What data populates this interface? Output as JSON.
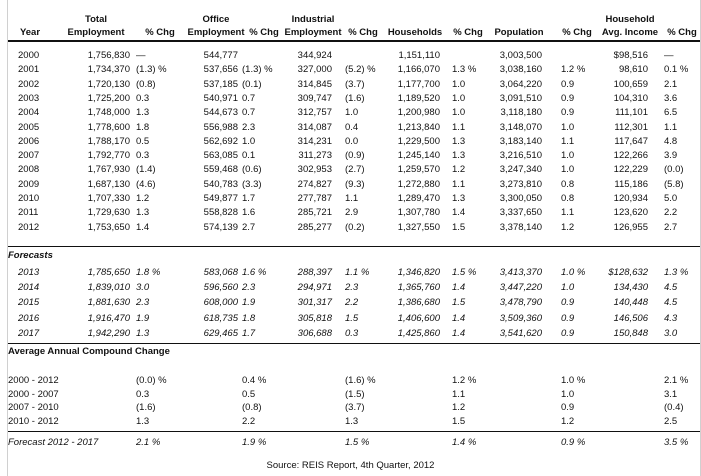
{
  "header": {
    "row1": [
      "",
      "Total",
      "",
      "Office",
      "",
      "Industrial",
      "",
      "",
      "",
      "",
      "",
      "Household",
      ""
    ],
    "row2": [
      "Year",
      "Employment",
      "% Chg",
      "Employment",
      "% Chg",
      "Employment",
      "% Chg",
      "Households",
      "% Chg",
      "Population",
      "% Chg",
      "Avg. Income",
      "% Chg"
    ]
  },
  "historical": [
    [
      "2000",
      "1,756,830",
      "—",
      "544,777",
      "",
      "344,924",
      "",
      "1,151,110",
      "",
      "3,003,500",
      "",
      "$98,516",
      "—"
    ],
    [
      "2001",
      "1,734,370",
      "(1.3) %",
      "537,656",
      "(1.3) %",
      "327,000",
      "(5.2) %",
      "1,166,070",
      "1.3 %",
      "3,038,160",
      "1.2 %",
      "98,610",
      "0.1 %"
    ],
    [
      "2002",
      "1,720,130",
      "(0.8)",
      "537,185",
      "(0.1)",
      "314,845",
      "(3.7)",
      "1,177,700",
      "1.0",
      "3,064,220",
      "0.9",
      "100,659",
      "2.1"
    ],
    [
      "2003",
      "1,725,200",
      "0.3",
      "540,971",
      "0.7",
      "309,747",
      "(1.6)",
      "1,189,520",
      "1.0",
      "3,091,510",
      "0.9",
      "104,310",
      "3.6"
    ],
    [
      "2004",
      "1,748,000",
      "1.3",
      "544,673",
      "0.7",
      "312,757",
      "1.0",
      "1,200,980",
      "1.0",
      "3,118,180",
      "0.9",
      "111,101",
      "6.5"
    ],
    [
      "2005",
      "1,778,600",
      "1.8",
      "556,988",
      "2.3",
      "314,087",
      "0.4",
      "1,213,840",
      "1.1",
      "3,148,070",
      "1.0",
      "112,301",
      "1.1"
    ],
    [
      "2006",
      "1,788,170",
      "0.5",
      "562,692",
      "1.0",
      "314,231",
      "0.0",
      "1,229,500",
      "1.3",
      "3,183,140",
      "1.1",
      "117,647",
      "4.8"
    ],
    [
      "2007",
      "1,792,770",
      "0.3",
      "563,085",
      "0.1",
      "311,273",
      "(0.9)",
      "1,245,140",
      "1.3",
      "3,216,510",
      "1.0",
      "122,266",
      "3.9"
    ],
    [
      "2008",
      "1,767,930",
      "(1.4)",
      "559,468",
      "(0.6)",
      "302,953",
      "(2.7)",
      "1,259,570",
      "1.2",
      "3,247,340",
      "1.0",
      "122,229",
      "(0.0)"
    ],
    [
      "2009",
      "1,687,130",
      "(4.6)",
      "540,783",
      "(3.3)",
      "274,827",
      "(9.3)",
      "1,272,880",
      "1.1",
      "3,273,810",
      "0.8",
      "115,186",
      "(5.8)"
    ],
    [
      "2010",
      "1,707,330",
      "1.2",
      "549,877",
      "1.7",
      "277,787",
      "1.1",
      "1,289,470",
      "1.3",
      "3,300,050",
      "0.8",
      "120,934",
      "5.0"
    ],
    [
      "2011",
      "1,729,630",
      "1.3",
      "558,828",
      "1.6",
      "285,721",
      "2.9",
      "1,307,780",
      "1.4",
      "3,337,650",
      "1.1",
      "123,620",
      "2.2"
    ],
    [
      "2012",
      "1,753,650",
      "1.4",
      "574,139",
      "2.7",
      "285,277",
      "(0.2)",
      "1,327,550",
      "1.5",
      "3,378,140",
      "1.2",
      "126,955",
      "2.7"
    ]
  ],
  "forecasts_label": "Forecasts",
  "forecasts": [
    [
      "2013",
      "1,785,650",
      "1.8 %",
      "583,068",
      "1.6 %",
      "288,397",
      "1.1 %",
      "1,346,820",
      "1.5 %",
      "3,413,370",
      "1.0 %",
      "$128,632",
      "1.3 %"
    ],
    [
      "2014",
      "1,839,010",
      "3.0",
      "596,560",
      "2.3",
      "294,971",
      "2.3",
      "1,365,760",
      "1.4",
      "3,447,220",
      "1.0",
      "134,430",
      "4.5"
    ],
    [
      "2015",
      "1,881,630",
      "2.3",
      "608,000",
      "1.9",
      "301,317",
      "2.2",
      "1,386,680",
      "1.5",
      "3,478,790",
      "0.9",
      "140,448",
      "4.5"
    ],
    [
      "2016",
      "1,916,470",
      "1.9",
      "618,735",
      "1.8",
      "305,818",
      "1.5",
      "1,406,600",
      "1.4",
      "3,509,360",
      "0.9",
      "146,506",
      "4.3"
    ],
    [
      "2017",
      "1,942,290",
      "1.3",
      "629,465",
      "1.7",
      "306,688",
      "0.3",
      "1,425,860",
      "1.4",
      "3,541,620",
      "0.9",
      "150,848",
      "3.0"
    ]
  ],
  "avg_label": "Average Annual Compound Change",
  "avg_rows": [
    [
      "2000 - 2012",
      "",
      "(0.0) %",
      "",
      "0.4 %",
      "",
      "(1.6) %",
      "",
      "1.2 %",
      "",
      "1.0 %",
      "",
      "2.1 %"
    ],
    [
      "2000 - 2007",
      "",
      "0.3",
      "",
      "0.5",
      "",
      "(1.5)",
      "",
      "1.1",
      "",
      "1.0",
      "",
      "3.1"
    ],
    [
      "2007 - 2010",
      "",
      "(1.6)",
      "",
      "(0.8)",
      "",
      "(3.7)",
      "",
      "1.2",
      "",
      "0.9",
      "",
      "(0.4)"
    ],
    [
      "2010 - 2012",
      "",
      "1.3",
      "",
      "2.2",
      "",
      "1.3",
      "",
      "1.5",
      "",
      "1.2",
      "",
      "2.5"
    ]
  ],
  "forecast_avg": [
    "Forecast 2012 - 2017",
    "",
    "2.1 %",
    "",
    "1.9 %",
    "",
    "1.5 %",
    "",
    "1.4 %",
    "",
    "0.9 %",
    "",
    "3.5 %"
  ],
  "source": "Source: REIS Report, 4th Quarter, 2012"
}
